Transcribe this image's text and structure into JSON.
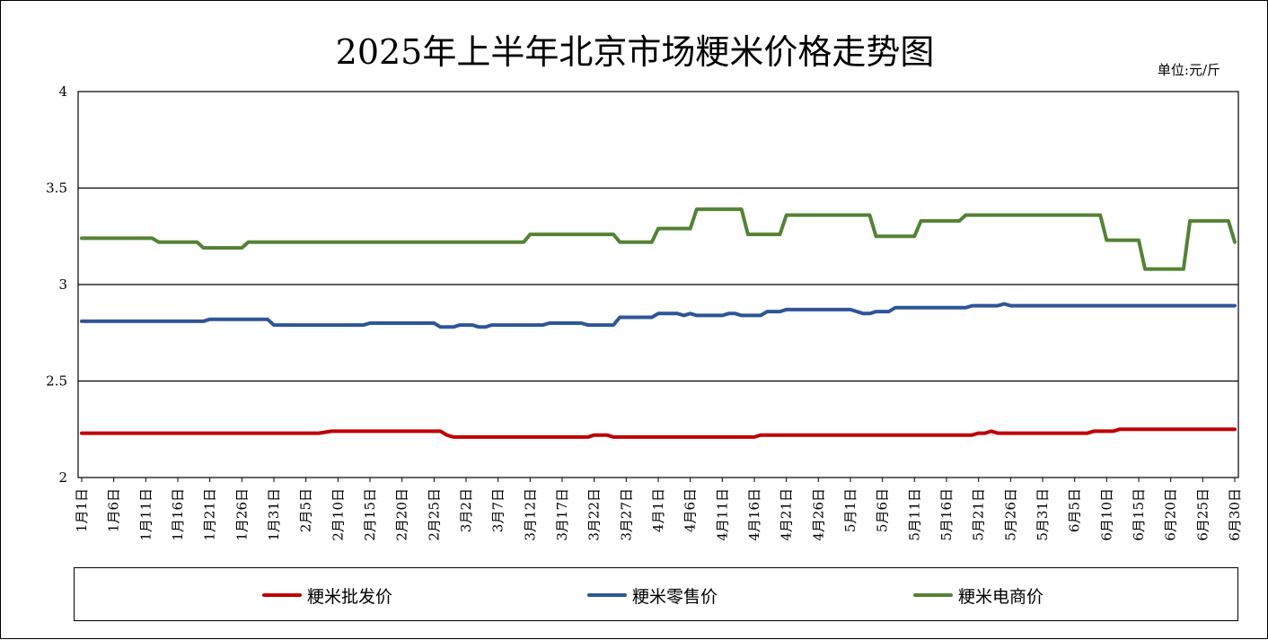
{
  "chart_data": {
    "type": "line",
    "title": "2025年上半年北京市场粳米价格走势图",
    "unit_label": "单位:元/斤",
    "ylim": [
      2,
      4
    ],
    "y_ticks": [
      "2",
      "2.5",
      "3",
      "3.5",
      "4"
    ],
    "grid": true,
    "legend_position": "bottom",
    "x_tick_labels": [
      "1月1日",
      "1月6日",
      "1月11日",
      "1月16日",
      "1月21日",
      "1月26日",
      "1月31日",
      "2月5日",
      "2月10日",
      "2月15日",
      "2月20日",
      "2月25日",
      "3月2日",
      "3月7日",
      "3月12日",
      "3月17日",
      "3月22日",
      "3月27日",
      "4月1日",
      "4月6日",
      "4月11日",
      "4月16日",
      "4月21日",
      "4月26日",
      "5月1日",
      "5月6日",
      "5月11日",
      "5月16日",
      "5月21日",
      "5月26日",
      "5月31日",
      "6月5日",
      "6月10日",
      "6月15日",
      "6月20日",
      "6月25日",
      "6月30日"
    ],
    "series": [
      {
        "name": "粳米批发价",
        "color": "#C00000",
        "points": [
          [
            "1月1日",
            2.23
          ],
          [
            "2月7日",
            2.23
          ],
          [
            "2月9日",
            2.24
          ],
          [
            "2月26日",
            2.24
          ],
          [
            "2月27日",
            2.22
          ],
          [
            "2月28日",
            2.21
          ],
          [
            "3月21日",
            2.21
          ],
          [
            "3月22日",
            2.22
          ],
          [
            "3月24日",
            2.22
          ],
          [
            "3月25日",
            2.21
          ],
          [
            "4月16日",
            2.21
          ],
          [
            "4月17日",
            2.22
          ],
          [
            "5月20日",
            2.22
          ],
          [
            "5月21日",
            2.23
          ],
          [
            "5月22日",
            2.23
          ],
          [
            "5月23日",
            2.24
          ],
          [
            "5月24日",
            2.23
          ],
          [
            "6月7日",
            2.23
          ],
          [
            "6月8日",
            2.24
          ],
          [
            "6月11日",
            2.24
          ],
          [
            "6月12日",
            2.25
          ],
          [
            "6/30",
            2.25
          ]
        ]
      },
      {
        "name": "粳米零售价",
        "color": "#2F5597",
        "points": [
          [
            "1月1日",
            2.81
          ],
          [
            "1月20日",
            2.81
          ],
          [
            "1月21日",
            2.82
          ],
          [
            "1月30日",
            2.82
          ],
          [
            "1月31日",
            2.79
          ],
          [
            "2月14日",
            2.79
          ],
          [
            "2月15日",
            2.8
          ],
          [
            "2月20日",
            2.8
          ],
          [
            "2月21日",
            2.8
          ],
          [
            "2月25日",
            2.8
          ],
          [
            "2月26日",
            2.78
          ],
          [
            "2月28日",
            2.78
          ],
          [
            "3月1日",
            2.79
          ],
          [
            "3月3日",
            2.79
          ],
          [
            "3月4日",
            2.78
          ],
          [
            "3月5日",
            2.78
          ],
          [
            "3月6日",
            2.79
          ],
          [
            "3月14日",
            2.79
          ],
          [
            "3月15日",
            2.8
          ],
          [
            "3月20日",
            2.8
          ],
          [
            "3月21日",
            2.79
          ],
          [
            "3月25日",
            2.79
          ],
          [
            "3月26日",
            2.83
          ],
          [
            "3月31日",
            2.83
          ],
          [
            "4月1日",
            2.85
          ],
          [
            "4月4日",
            2.85
          ],
          [
            "4月5日",
            2.84
          ],
          [
            "4月6日",
            2.85
          ],
          [
            "4月7日",
            2.84
          ],
          [
            "4月11日",
            2.84
          ],
          [
            "4月12日",
            2.85
          ],
          [
            "4月13日",
            2.85
          ],
          [
            "4月14日",
            2.84
          ],
          [
            "4月17日",
            2.84
          ],
          [
            "4月18日",
            2.86
          ],
          [
            "4月20日",
            2.86
          ],
          [
            "4月21日",
            2.87
          ],
          [
            "5月1日",
            2.87
          ],
          [
            "5月3日",
            2.85
          ],
          [
            "5月4日",
            2.85
          ],
          [
            "5月5日",
            2.86
          ],
          [
            "5月7日",
            2.86
          ],
          [
            "5月8日",
            2.88
          ],
          [
            "5月19日",
            2.88
          ],
          [
            "5月20日",
            2.89
          ],
          [
            "5月24日",
            2.89
          ],
          [
            "5月25日",
            2.9
          ],
          [
            "5月26日",
            2.89
          ],
          [
            "6/30",
            2.89
          ]
        ]
      },
      {
        "name": "粳米电商价",
        "color": "#548235",
        "points": [
          [
            "1月1日",
            3.24
          ],
          [
            "1月12日",
            3.24
          ],
          [
            "1月13日",
            3.22
          ],
          [
            "1月19日",
            3.22
          ],
          [
            "1月20日",
            3.19
          ],
          [
            "1月26日",
            3.19
          ],
          [
            "1月27日",
            3.22
          ],
          [
            "3月11日",
            3.22
          ],
          [
            "3月12日",
            3.26
          ],
          [
            "3月25日",
            3.26
          ],
          [
            "3月26日",
            3.22
          ],
          [
            "3月31日",
            3.22
          ],
          [
            "4月1日",
            3.29
          ],
          [
            "4月6日",
            3.29
          ],
          [
            "4月7日",
            3.39
          ],
          [
            "4月14日",
            3.39
          ],
          [
            "4月15日",
            3.26
          ],
          [
            "4月20日",
            3.26
          ],
          [
            "4月21日",
            3.36
          ],
          [
            "5月4日",
            3.36
          ],
          [
            "5月5日",
            3.25
          ],
          [
            "5月11日",
            3.25
          ],
          [
            "5月12日",
            3.33
          ],
          [
            "5月18日",
            3.33
          ],
          [
            "5月19日",
            3.36
          ],
          [
            "6月9日",
            3.36
          ],
          [
            "6月10日",
            3.23
          ],
          [
            "6月15日",
            3.23
          ],
          [
            "6月16日",
            3.08
          ],
          [
            "6月22日",
            3.08
          ],
          [
            "6月23日",
            3.33
          ],
          [
            "6月29日",
            3.33
          ],
          [
            "6/30",
            3.22
          ]
        ]
      }
    ]
  }
}
